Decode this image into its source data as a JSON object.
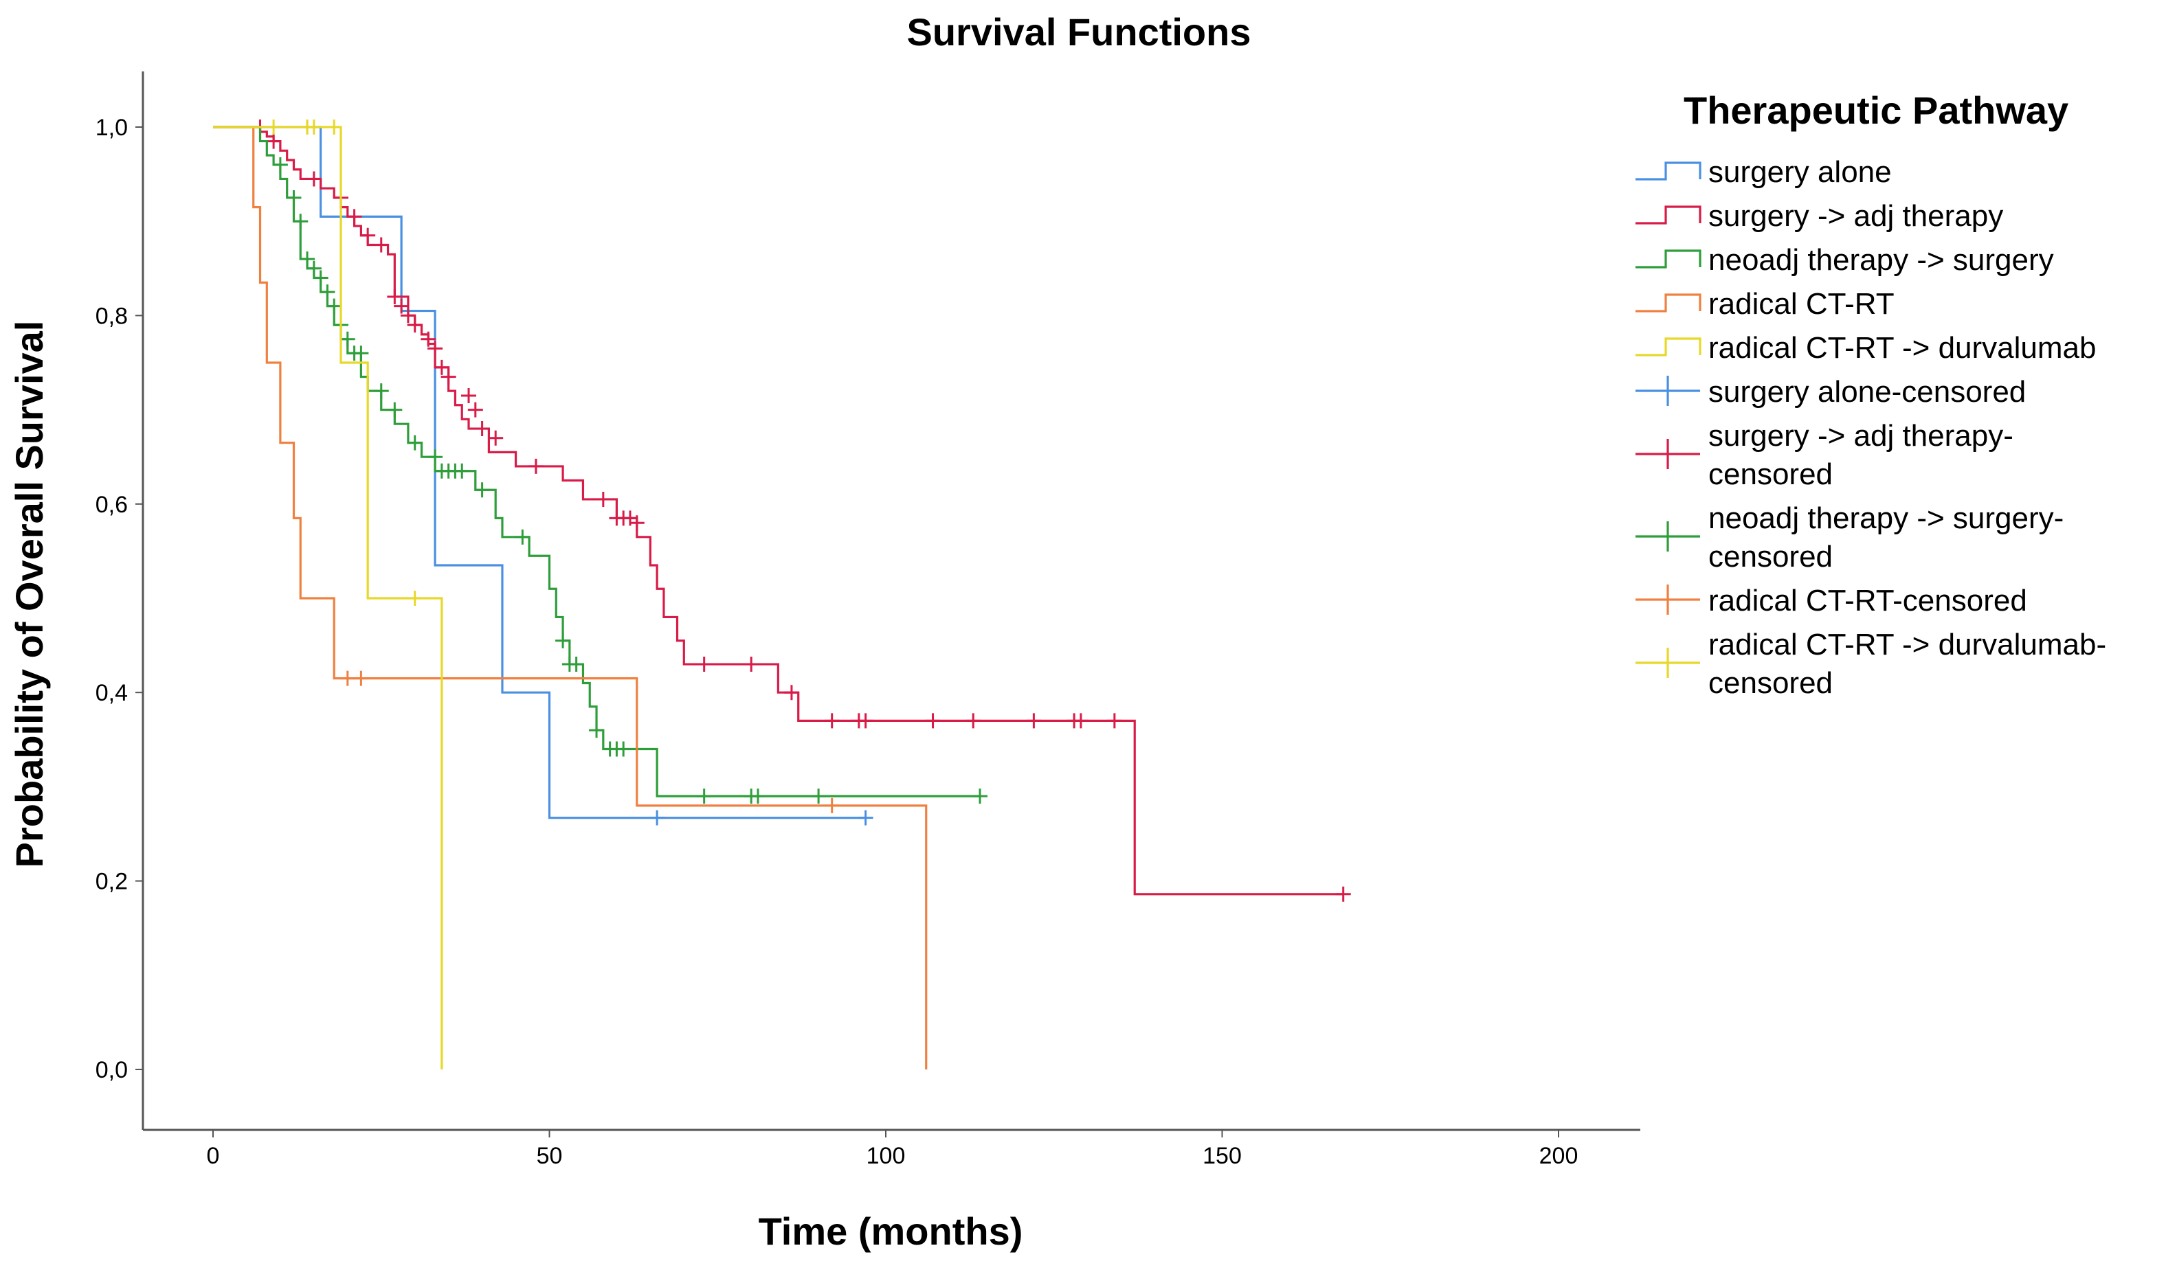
{
  "chart_data": {
    "type": "line",
    "subtype": "kaplan-meier-step",
    "title": "Survival Functions",
    "xlabel": "Time (months)",
    "ylabel": "Probability of Overall Survival",
    "xlim": [
      -10,
      210
    ],
    "ylim": [
      -0.05,
      1.05
    ],
    "x_ticks": [
      {
        "value": 0,
        "label": "0"
      },
      {
        "value": 50,
        "label": "50"
      },
      {
        "value": 100,
        "label": "100"
      },
      {
        "value": 150,
        "label": "150"
      },
      {
        "value": 200,
        "label": "200"
      }
    ],
    "y_ticks": [
      {
        "value": 0.0,
        "label": "0,0"
      },
      {
        "value": 0.2,
        "label": "0,2"
      },
      {
        "value": 0.4,
        "label": "0,4"
      },
      {
        "value": 0.6,
        "label": "0,6"
      },
      {
        "value": 0.8,
        "label": "0,8"
      },
      {
        "value": 1.0,
        "label": "1,0"
      }
    ],
    "grid": false,
    "legend": {
      "title": "Therapeutic Pathway",
      "position": "right",
      "entries": [
        {
          "label": "surgery  alone",
          "series": "surgery_alone",
          "kind": "step"
        },
        {
          "label": "surgery -> adj therapy",
          "series": "surgery_adj",
          "kind": "step"
        },
        {
          "label": "neoadj therapy -> surgery",
          "series": "neoadj_surgery",
          "kind": "step"
        },
        {
          "label": "radical CT-RT",
          "series": "radical_ctrt",
          "kind": "step"
        },
        {
          "label": "radical CT-RT -> durvalumab",
          "series": "ctrt_durva",
          "kind": "step"
        },
        {
          "label": "surgery alone-censored",
          "series": "surgery_alone",
          "kind": "censor"
        },
        {
          "label": "surgery -> adj therapy-\ncensored",
          "series": "surgery_adj",
          "kind": "censor"
        },
        {
          "label": "neoadj therapy -> surgery-\ncensored",
          "series": "neoadj_surgery",
          "kind": "censor"
        },
        {
          "label": "radical CT-RT-censored",
          "series": "radical_ctrt",
          "kind": "censor"
        },
        {
          "label": "radical CT-RT -> durvalumab-\ncensored",
          "series": "ctrt_durva",
          "kind": "censor"
        }
      ]
    },
    "series": [
      {
        "id": "surgery_alone",
        "name": "surgery  alone",
        "color": "#4a90e2",
        "steps": [
          [
            0,
            1.0
          ],
          [
            16,
            0.905
          ],
          [
            28,
            0.805
          ],
          [
            33,
            0.535
          ],
          [
            43,
            0.4
          ],
          [
            50,
            0.267
          ]
        ],
        "end_x": 97,
        "censored": [
          [
            14,
            1.0
          ],
          [
            66,
            0.267
          ],
          [
            97,
            0.267
          ]
        ]
      },
      {
        "id": "surgery_adj",
        "name": "surgery -> adj therapy",
        "color": "#d81b47",
        "steps": [
          [
            0,
            1.0
          ],
          [
            7,
            0.995
          ],
          [
            8,
            0.99
          ],
          [
            9,
            0.985
          ],
          [
            10,
            0.975
          ],
          [
            11,
            0.965
          ],
          [
            12,
            0.955
          ],
          [
            13,
            0.945
          ],
          [
            16,
            0.935
          ],
          [
            18,
            0.925
          ],
          [
            19,
            0.915
          ],
          [
            20,
            0.905
          ],
          [
            21,
            0.895
          ],
          [
            22,
            0.885
          ],
          [
            23,
            0.875
          ],
          [
            26,
            0.865
          ],
          [
            27,
            0.82
          ],
          [
            29,
            0.8
          ],
          [
            30,
            0.79
          ],
          [
            31,
            0.78
          ],
          [
            32,
            0.77
          ],
          [
            33,
            0.745
          ],
          [
            35,
            0.72
          ],
          [
            36,
            0.705
          ],
          [
            37,
            0.69
          ],
          [
            38,
            0.68
          ],
          [
            41,
            0.655
          ],
          [
            45,
            0.64
          ],
          [
            52,
            0.625
          ],
          [
            55,
            0.605
          ],
          [
            60,
            0.585
          ],
          [
            63,
            0.565
          ],
          [
            65,
            0.535
          ],
          [
            66,
            0.51
          ],
          [
            67,
            0.48
          ],
          [
            69,
            0.455
          ],
          [
            70,
            0.43
          ],
          [
            84,
            0.4
          ],
          [
            87,
            0.37
          ],
          [
            137,
            0.186
          ]
        ],
        "end_x": 168,
        "censored": [
          [
            7,
            1.0
          ],
          [
            9,
            0.985
          ],
          [
            15,
            0.945
          ],
          [
            19,
            0.925
          ],
          [
            21,
            0.905
          ],
          [
            23,
            0.885
          ],
          [
            25,
            0.875
          ],
          [
            27,
            0.82
          ],
          [
            28,
            0.81
          ],
          [
            29,
            0.8
          ],
          [
            30,
            0.79
          ],
          [
            32,
            0.775
          ],
          [
            33,
            0.765
          ],
          [
            34,
            0.745
          ],
          [
            35,
            0.735
          ],
          [
            38,
            0.715
          ],
          [
            39,
            0.7
          ],
          [
            40,
            0.68
          ],
          [
            42,
            0.67
          ],
          [
            48,
            0.64
          ],
          [
            58,
            0.605
          ],
          [
            60,
            0.585
          ],
          [
            61,
            0.585
          ],
          [
            62,
            0.585
          ],
          [
            63,
            0.58
          ],
          [
            73,
            0.43
          ],
          [
            80,
            0.43
          ],
          [
            86,
            0.4
          ],
          [
            92,
            0.37
          ],
          [
            96,
            0.37
          ],
          [
            97,
            0.37
          ],
          [
            107,
            0.37
          ],
          [
            113,
            0.37
          ],
          [
            122,
            0.37
          ],
          [
            128,
            0.37
          ],
          [
            129,
            0.37
          ],
          [
            134,
            0.37
          ],
          [
            168,
            0.186
          ]
        ]
      },
      {
        "id": "neoadj_surgery",
        "name": "neoadj therapy -> surgery",
        "color": "#2e9e3a",
        "steps": [
          [
            0,
            1.0
          ],
          [
            7,
            0.985
          ],
          [
            8,
            0.97
          ],
          [
            9,
            0.96
          ],
          [
            10,
            0.945
          ],
          [
            11,
            0.925
          ],
          [
            12,
            0.9
          ],
          [
            13,
            0.86
          ],
          [
            14,
            0.85
          ],
          [
            15,
            0.84
          ],
          [
            16,
            0.825
          ],
          [
            17,
            0.81
          ],
          [
            18,
            0.79
          ],
          [
            19,
            0.775
          ],
          [
            20,
            0.76
          ],
          [
            22,
            0.735
          ],
          [
            23,
            0.72
          ],
          [
            25,
            0.7
          ],
          [
            27,
            0.685
          ],
          [
            29,
            0.665
          ],
          [
            31,
            0.65
          ],
          [
            33,
            0.635
          ],
          [
            39,
            0.615
          ],
          [
            42,
            0.585
          ],
          [
            43,
            0.565
          ],
          [
            47,
            0.545
          ],
          [
            50,
            0.51
          ],
          [
            51,
            0.48
          ],
          [
            52,
            0.455
          ],
          [
            53,
            0.43
          ],
          [
            55,
            0.41
          ],
          [
            56,
            0.385
          ],
          [
            57,
            0.36
          ],
          [
            58,
            0.34
          ],
          [
            66,
            0.29
          ]
        ],
        "end_x": 114,
        "censored": [
          [
            10,
            0.96
          ],
          [
            12,
            0.925
          ],
          [
            13,
            0.9
          ],
          [
            14,
            0.86
          ],
          [
            15,
            0.85
          ],
          [
            16,
            0.84
          ],
          [
            17,
            0.825
          ],
          [
            18,
            0.81
          ],
          [
            19,
            0.79
          ],
          [
            20,
            0.775
          ],
          [
            21,
            0.76
          ],
          [
            22,
            0.76
          ],
          [
            25,
            0.72
          ],
          [
            27,
            0.7
          ],
          [
            30,
            0.665
          ],
          [
            33,
            0.65
          ],
          [
            34,
            0.635
          ],
          [
            35,
            0.635
          ],
          [
            36,
            0.635
          ],
          [
            37,
            0.635
          ],
          [
            40,
            0.615
          ],
          [
            46,
            0.565
          ],
          [
            52,
            0.455
          ],
          [
            53,
            0.43
          ],
          [
            54,
            0.43
          ],
          [
            57,
            0.36
          ],
          [
            59,
            0.34
          ],
          [
            60,
            0.34
          ],
          [
            61,
            0.34
          ],
          [
            73,
            0.29
          ],
          [
            80,
            0.29
          ],
          [
            81,
            0.29
          ],
          [
            90,
            0.29
          ],
          [
            114,
            0.29
          ]
        ]
      },
      {
        "id": "radical_ctrt",
        "name": "radical CT-RT",
        "color": "#f08040",
        "steps": [
          [
            0,
            1.0
          ],
          [
            6,
            0.915
          ],
          [
            7,
            0.835
          ],
          [
            8,
            0.75
          ],
          [
            10,
            0.665
          ],
          [
            12,
            0.585
          ],
          [
            13,
            0.5
          ],
          [
            18,
            0.415
          ],
          [
            63,
            0.28
          ],
          [
            106,
            0.0
          ]
        ],
        "end_x": 106,
        "censored": [
          [
            20,
            0.415
          ],
          [
            22,
            0.415
          ],
          [
            92,
            0.28
          ]
        ]
      },
      {
        "id": "ctrt_durva",
        "name": "radical CT-RT -> durvalumab",
        "color": "#e8d828",
        "steps": [
          [
            0,
            1.0
          ],
          [
            19,
            0.75
          ],
          [
            23,
            0.5
          ],
          [
            34,
            0.0
          ]
        ],
        "end_x": 34,
        "censored": [
          [
            9,
            1.0
          ],
          [
            14,
            1.0
          ],
          [
            15,
            1.0
          ],
          [
            18,
            1.0
          ],
          [
            30,
            0.5
          ]
        ]
      }
    ]
  }
}
